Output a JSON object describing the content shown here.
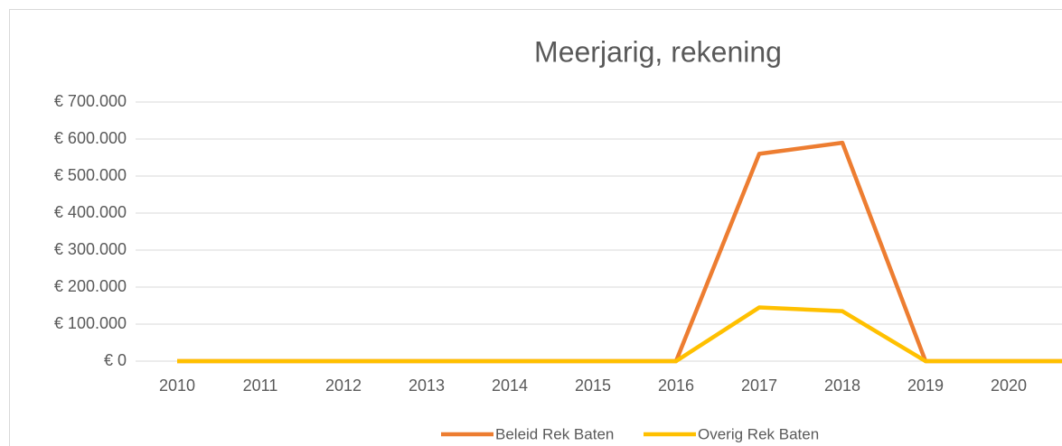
{
  "chart_data": {
    "type": "line",
    "title": "Meerjarig, rekening",
    "categories": [
      "2010",
      "2011",
      "2012",
      "2013",
      "2014",
      "2015",
      "2016",
      "2017",
      "2018",
      "2019",
      "2020",
      null
    ],
    "series": [
      {
        "name": "Beleid Rek Baten",
        "color": "#ed7d31",
        "values": [
          0,
          0,
          0,
          0,
          0,
          0,
          0,
          560000,
          590000,
          0,
          0,
          0
        ]
      },
      {
        "name": "Overig Rek Baten",
        "color": "#ffc000",
        "values": [
          0,
          0,
          0,
          0,
          0,
          0,
          0,
          145000,
          135000,
          0,
          0,
          0
        ]
      }
    ],
    "ylim": [
      0,
      700000
    ],
    "yticks": [
      {
        "value": 0,
        "label": "€ 0"
      },
      {
        "value": 100000,
        "label": "€ 100.000"
      },
      {
        "value": 200000,
        "label": "€ 200.000"
      },
      {
        "value": 300000,
        "label": "€ 300.000"
      },
      {
        "value": 400000,
        "label": "€ 400.000"
      },
      {
        "value": 500000,
        "label": "€ 500.000"
      },
      {
        "value": 600000,
        "label": "€ 600.000"
      },
      {
        "value": 700000,
        "label": "€ 700.000"
      }
    ],
    "grid": true
  }
}
